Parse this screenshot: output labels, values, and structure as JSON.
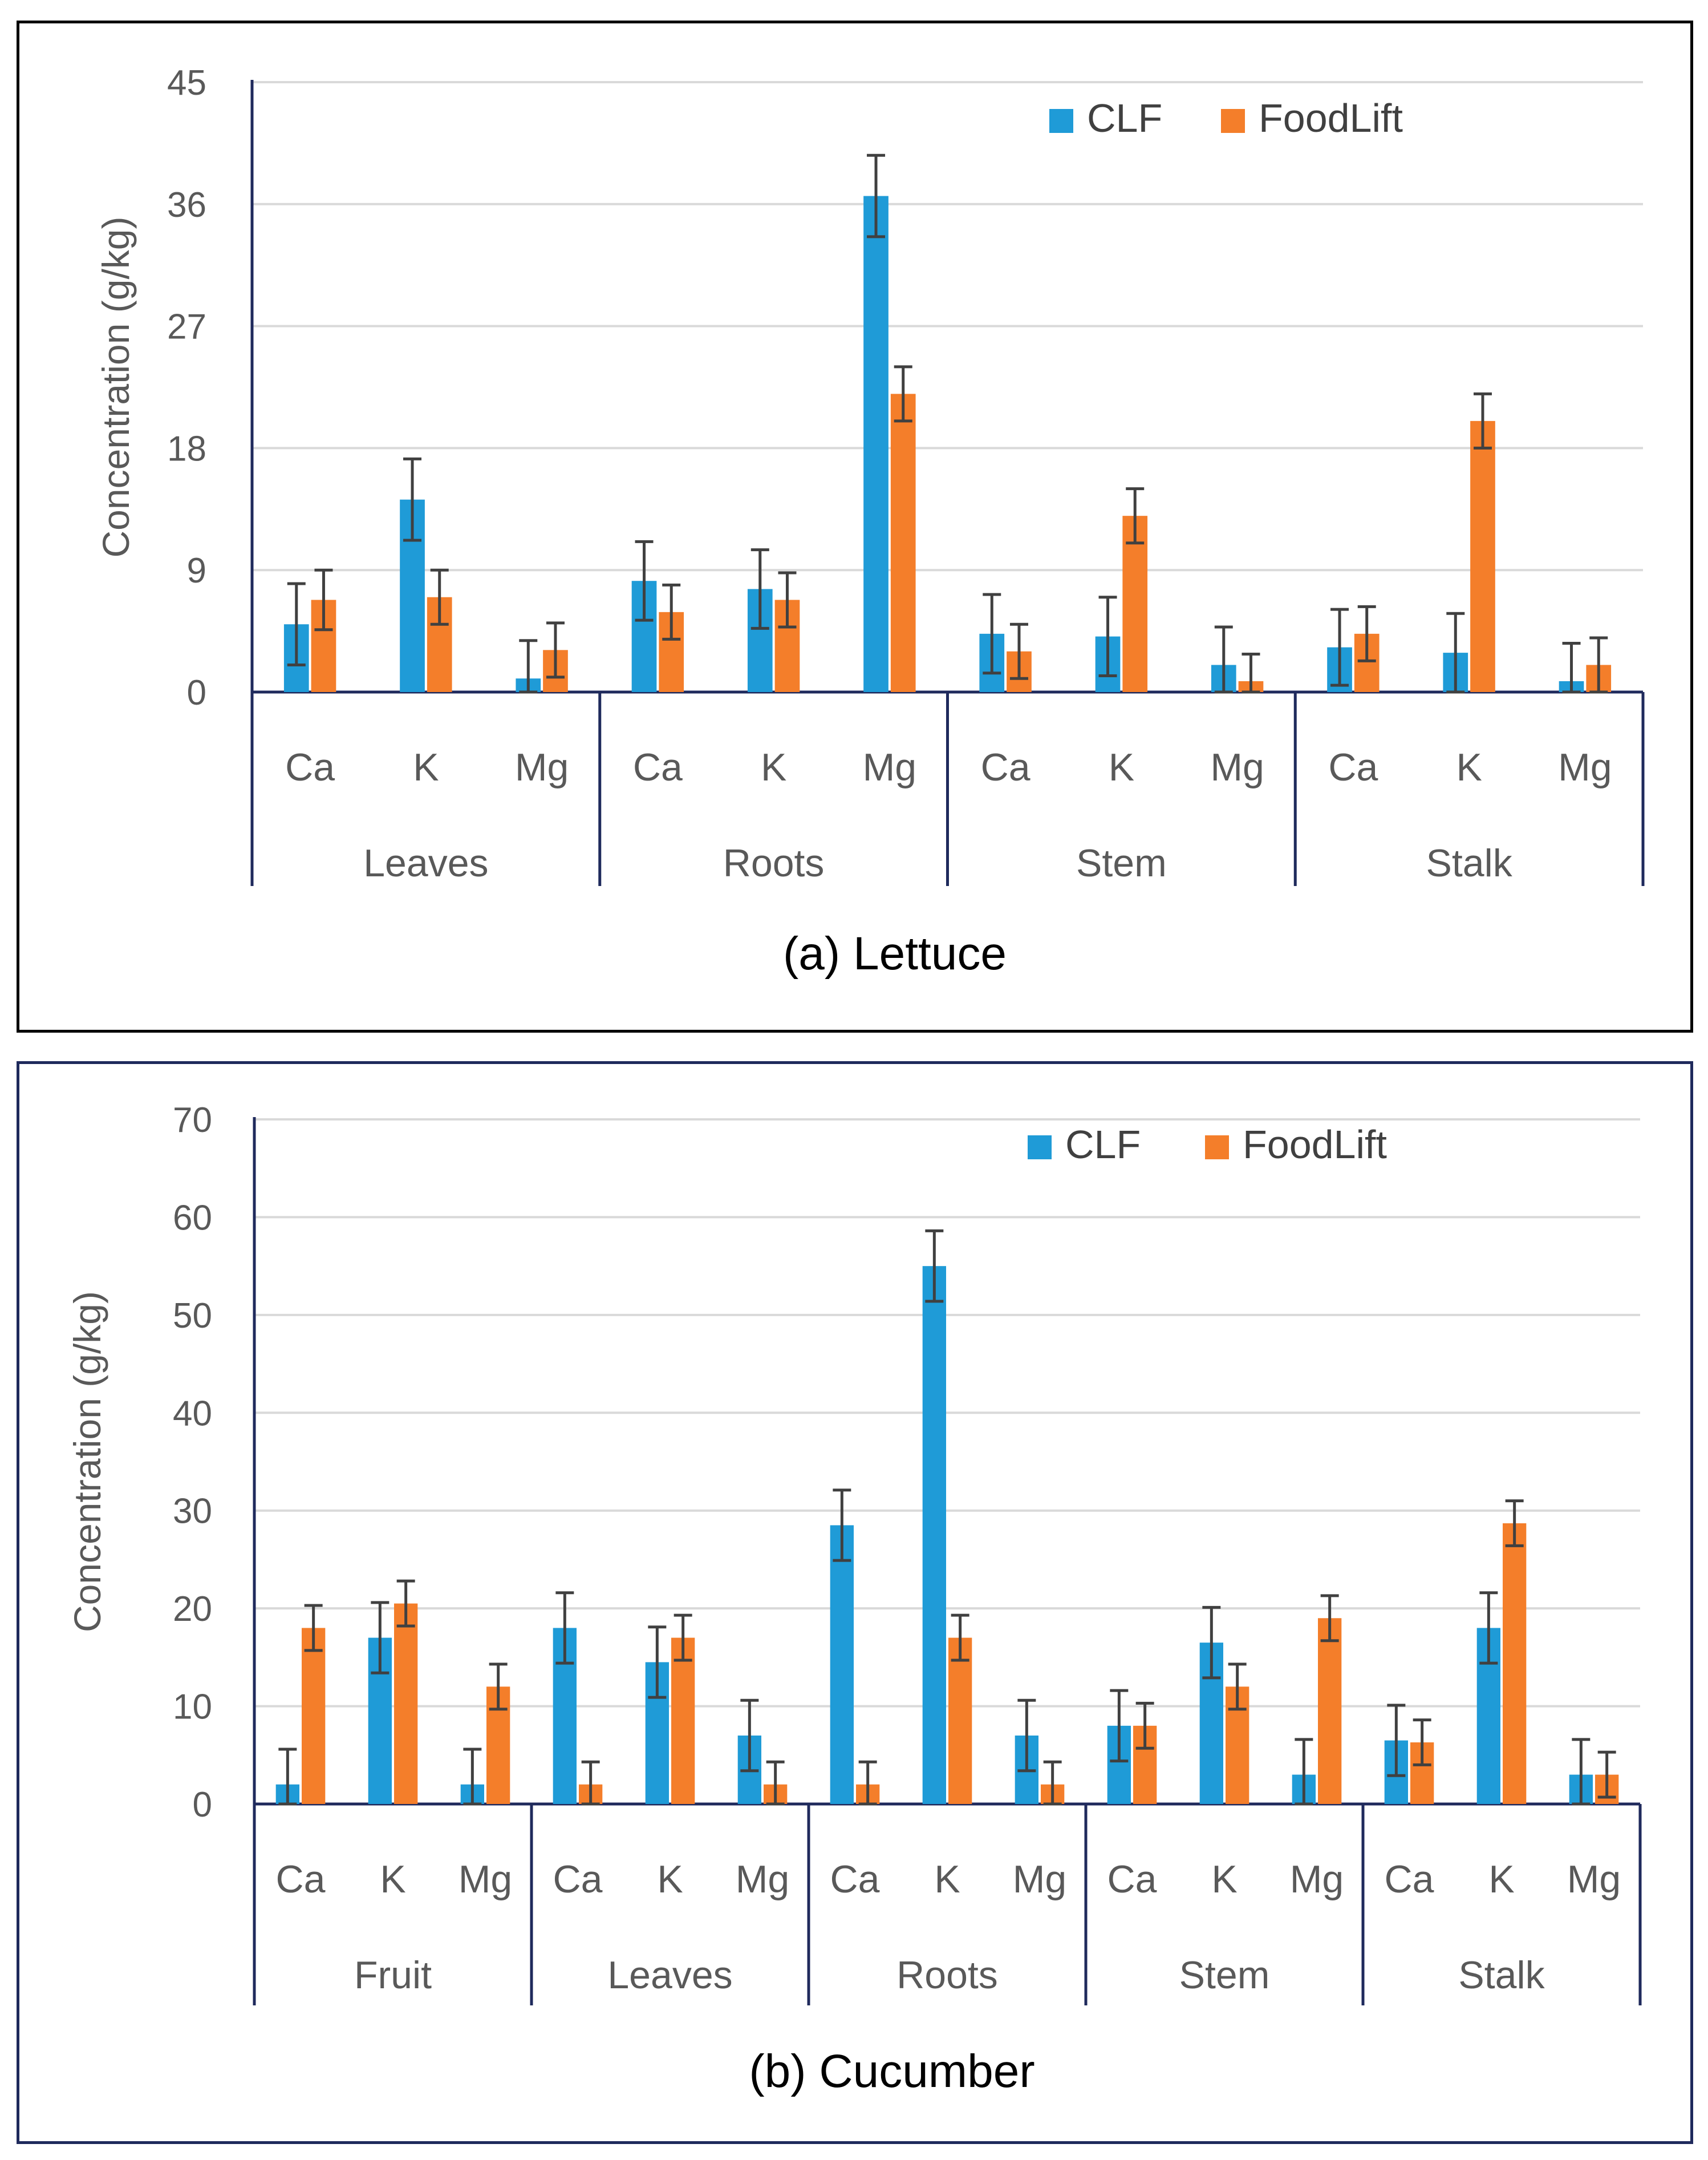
{
  "chart_data": [
    {
      "type": "bar",
      "title": "(a) Lettuce",
      "ylabel": "Concentration (g/kg)",
      "xlabel": "",
      "ylim": [
        0,
        45
      ],
      "yticks": [
        "0",
        "9",
        "18",
        "27",
        "36",
        "45"
      ],
      "grid": true,
      "legend_position": "top-right",
      "groups": [
        "Leaves",
        "Roots",
        "Stem",
        "Stalk"
      ],
      "subcategories": [
        "Ca",
        "K",
        "Mg"
      ],
      "series": [
        {
          "name": "CLF",
          "color": "#1f9bd7",
          "values": [
            5,
            14.2,
            1,
            8.2,
            7.6,
            36.6,
            4.3,
            4.1,
            2,
            3.3,
            2.9,
            0.8
          ],
          "errors": [
            3,
            3,
            2.8,
            2.9,
            2.9,
            3,
            2.9,
            2.9,
            2.8,
            2.8,
            2.9,
            2.8
          ]
        },
        {
          "name": "FoodLift",
          "color": "#f47e2a",
          "values": [
            6.8,
            7,
            3.1,
            5.9,
            6.8,
            22,
            3.0,
            13,
            0.8,
            4.3,
            20,
            2.0
          ],
          "errors": [
            2.2,
            2.0,
            2.0,
            2.0,
            2.0,
            2.0,
            2.0,
            2.0,
            2.0,
            2.0,
            2.0,
            2.0
          ]
        }
      ]
    },
    {
      "type": "bar",
      "title": "(b) Cucumber",
      "ylabel": "Concentration (g/kg)",
      "xlabel": "",
      "ylim": [
        0,
        70
      ],
      "yticks": [
        "0",
        "10",
        "20",
        "30",
        "40",
        "50",
        "60",
        "70"
      ],
      "grid": true,
      "legend_position": "top-right",
      "groups": [
        "Fruit",
        "Leaves",
        "Roots",
        "Stem",
        "Stalk"
      ],
      "subcategories": [
        "Ca",
        "K",
        "Mg"
      ],
      "series": [
        {
          "name": "CLF",
          "color": "#1f9bd7",
          "values": [
            2,
            17,
            2,
            18,
            14.5,
            7,
            28.5,
            55,
            7,
            8,
            16.5,
            3,
            6.5,
            18,
            3
          ],
          "errors": [
            3.6,
            3.6,
            3.6,
            3.6,
            3.6,
            3.6,
            3.6,
            3.6,
            3.6,
            3.6,
            3.6,
            3.6,
            3.6,
            3.6,
            3.6
          ]
        },
        {
          "name": "FoodLift",
          "color": "#f47e2a",
          "values": [
            18,
            20.5,
            12,
            2,
            17,
            2,
            2,
            17,
            2,
            8,
            12,
            19,
            6.3,
            28.7,
            3
          ],
          "errors": [
            2.3,
            2.3,
            2.3,
            2.3,
            2.3,
            2.3,
            2.3,
            2.3,
            2.3,
            2.3,
            2.3,
            2.3,
            2.3,
            2.3,
            2.3
          ]
        }
      ]
    }
  ]
}
